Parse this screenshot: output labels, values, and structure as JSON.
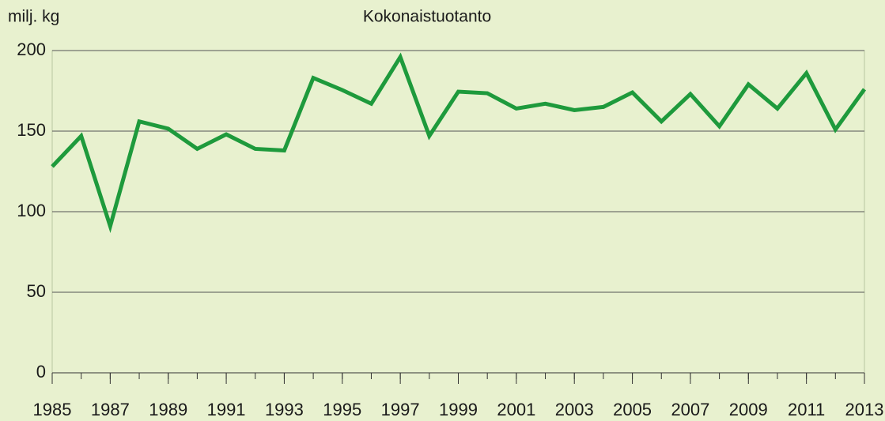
{
  "chart_data": {
    "type": "line",
    "title": "Kokonaistuotanto",
    "y_label": "milj. kg",
    "x": [
      1985,
      1986,
      1987,
      1988,
      1989,
      1990,
      1991,
      1992,
      1993,
      1994,
      1995,
      1996,
      1997,
      1998,
      1999,
      2000,
      2001,
      2002,
      2003,
      2004,
      2005,
      2006,
      2007,
      2008,
      2009,
      2010,
      2011,
      2012,
      2013
    ],
    "series": [
      {
        "name": "Kokonaistuotanto",
        "color": "#1e9a3c",
        "values": [
          128,
          147,
          91,
          156,
          151.5,
          139,
          148,
          139,
          138,
          183,
          175.5,
          167,
          196,
          147,
          174.5,
          173.5,
          164,
          167,
          163,
          165,
          174,
          156,
          173,
          153,
          179,
          164,
          186,
          151,
          176
        ]
      }
    ],
    "xlim": [
      1985,
      2013
    ],
    "xticks": [
      1985,
      1987,
      1989,
      1991,
      1993,
      1995,
      1997,
      1999,
      2001,
      2003,
      2005,
      2007,
      2009,
      2011,
      2013
    ],
    "ylim": [
      0,
      200
    ],
    "yticks": [
      0,
      50,
      100,
      150,
      200
    ],
    "grid": true
  }
}
